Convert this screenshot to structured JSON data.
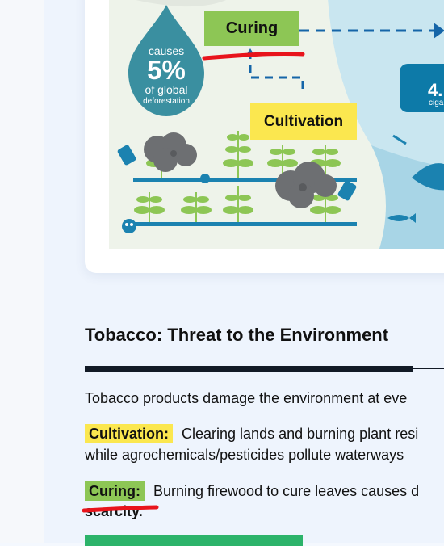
{
  "infographic": {
    "curing_label": "Curing",
    "cultivation_label": "Cultivation",
    "deforestation_drop": {
      "line1": "causes",
      "percent": "5%",
      "line3": "of global",
      "line4": "deforestation"
    },
    "cigarette_badge": {
      "value": "4.",
      "caption": "ciga"
    },
    "colors": {
      "curing_green": "#8dc655",
      "cultivation_yellow": "#fbe74f",
      "drop_teal": "#3a8fa0",
      "dash_blue": "#1565a8",
      "water_blue": "#bfe3ef"
    }
  },
  "section": {
    "title": "Tobacco: Threat to the Environment",
    "intro": "Tobacco products damage the environment at eve",
    "cultivation": {
      "tag": "Cultivation:",
      "line1": "Clearing lands and burning plant resi",
      "line2": "while agrochemicals/pesticides pollute waterways"
    },
    "curing": {
      "tag": "Curing:",
      "line1": "Burning firewood to cure leaves causes d",
      "line2": "scarcity."
    }
  },
  "annotations": {
    "color": "#e8141c"
  }
}
